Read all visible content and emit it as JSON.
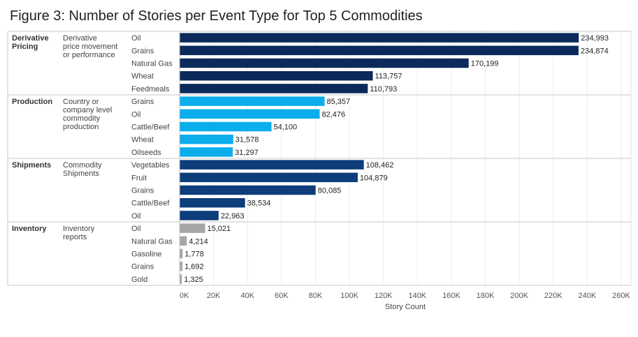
{
  "title": "Figure 3: Number of Stories per Event Type for Top 5 Commodities",
  "chart_data": {
    "type": "bar",
    "orientation": "horizontal",
    "title": "Figure 3: Number of Stories per Event Type for Top 5 Commodities",
    "xlabel": "Story Count",
    "xlim": [
      0,
      260000
    ],
    "xticks": [
      0,
      20000,
      40000,
      60000,
      80000,
      100000,
      120000,
      140000,
      160000,
      180000,
      200000,
      220000,
      240000,
      260000
    ],
    "xtick_labels": [
      "0K",
      "20K",
      "40K",
      "60K",
      "80K",
      "100K",
      "120K",
      "140K",
      "160K",
      "180K",
      "200K",
      "220K",
      "240K",
      "260K"
    ],
    "groups": [
      {
        "name": "Derivative Pricing",
        "description": "Derivative price movement or performance",
        "color": "#0b2a5b",
        "bars": [
          {
            "category": "Oil",
            "value": 234993,
            "label": "234,993"
          },
          {
            "category": "Grains",
            "value": 234874,
            "label": "234,874"
          },
          {
            "category": "Natural Gas",
            "value": 170199,
            "label": "170,199"
          },
          {
            "category": "Wheat",
            "value": 113757,
            "label": "113,757"
          },
          {
            "category": "Feedmeals",
            "value": 110793,
            "label": "110,793"
          }
        ]
      },
      {
        "name": "Production",
        "description": "Country or company level commodity production",
        "color": "#0badeb",
        "bars": [
          {
            "category": "Grains",
            "value": 85357,
            "label": "85,357"
          },
          {
            "category": "Oil",
            "value": 82476,
            "label": "82,476"
          },
          {
            "category": "Cattle/Beef",
            "value": 54100,
            "label": "54,100"
          },
          {
            "category": "Wheat",
            "value": 31578,
            "label": "31,578"
          },
          {
            "category": "Oilseeds",
            "value": 31297,
            "label": "31,297"
          }
        ]
      },
      {
        "name": "Shipments",
        "description": "Commodity Shipments",
        "color": "#0d3d7a",
        "bars": [
          {
            "category": "Vegetables",
            "value": 108462,
            "label": "108,462"
          },
          {
            "category": "Fruit",
            "value": 104879,
            "label": "104,879"
          },
          {
            "category": "Grains",
            "value": 80085,
            "label": "80,085"
          },
          {
            "category": "Cattle/Beef",
            "value": 38534,
            "label": "38,534"
          },
          {
            "category": "Oil",
            "value": 22963,
            "label": "22,963"
          }
        ]
      },
      {
        "name": "Inventory",
        "description": "Inventory reports",
        "color": "#a6a6a6",
        "bars": [
          {
            "category": "Oil",
            "value": 15021,
            "label": "15,021"
          },
          {
            "category": "Natural Gas",
            "value": 4214,
            "label": "4,214"
          },
          {
            "category": "Gasoline",
            "value": 1778,
            "label": "1,778"
          },
          {
            "category": "Grains",
            "value": 1692,
            "label": "1,692"
          },
          {
            "category": "Gold",
            "value": 1325,
            "label": "1,325"
          }
        ]
      }
    ]
  }
}
